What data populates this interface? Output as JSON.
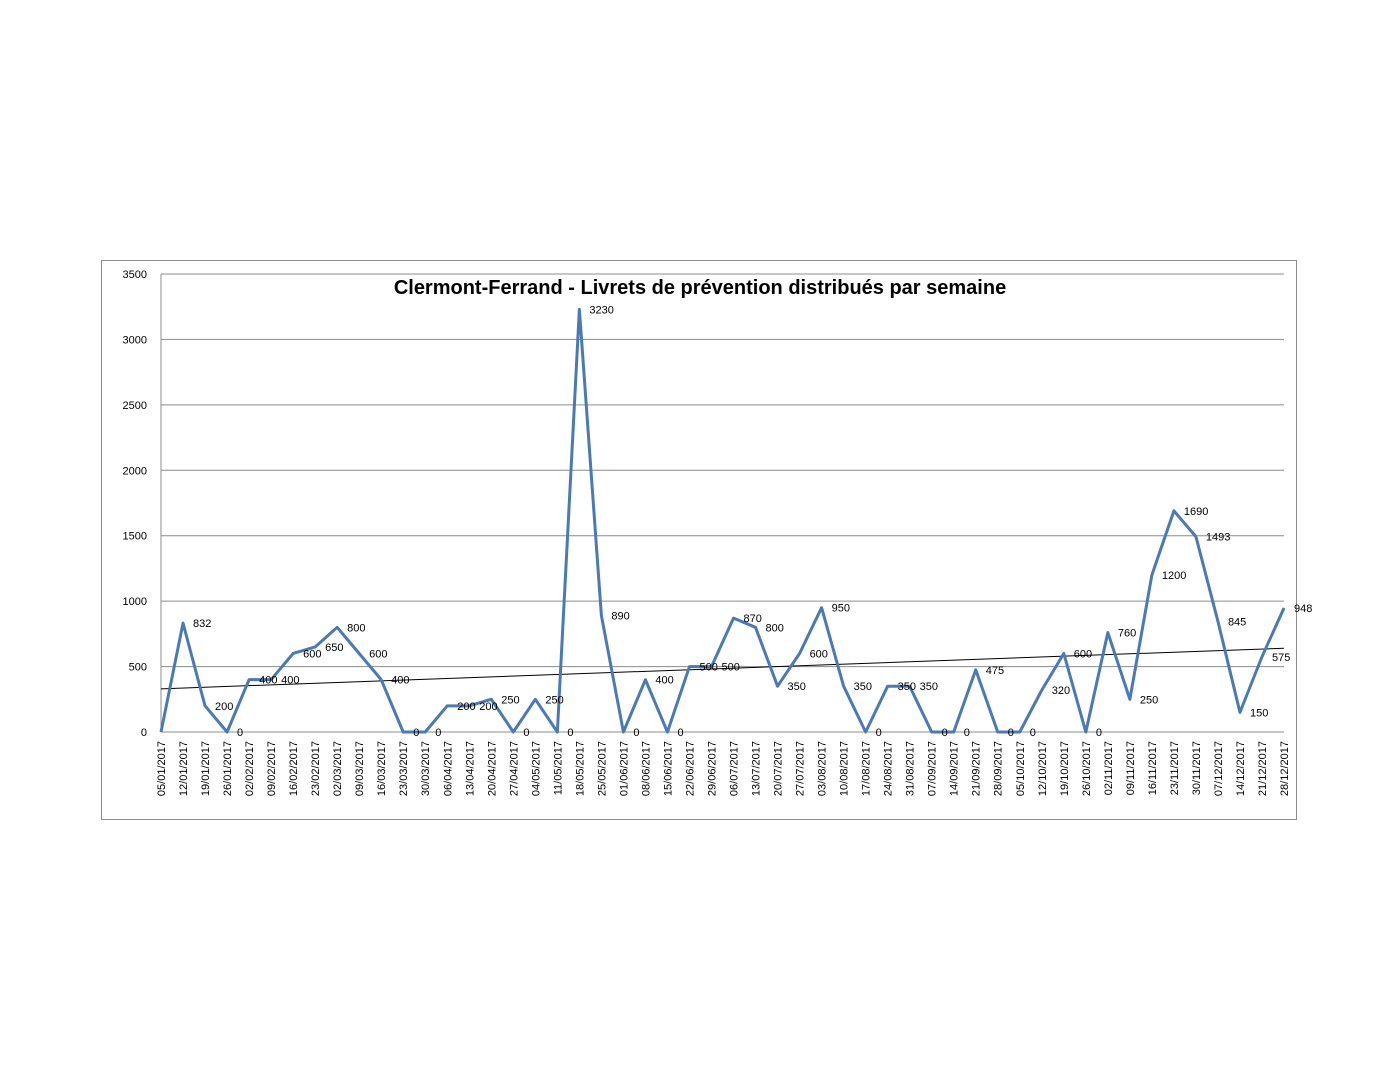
{
  "chart_data": {
    "type": "line",
    "title": "Clermont-Ferrand - Livrets de prévention distribués par semaine",
    "xlabel": "",
    "ylabel": "",
    "ylim": [
      0,
      3500
    ],
    "yticks": [
      "0",
      "500",
      "1000",
      "1500",
      "2000",
      "2500",
      "3000",
      "3500"
    ],
    "grid": true,
    "legend": "none",
    "categories": [
      "05/01/2017",
      "12/01/2017",
      "19/01/2017",
      "26/01/2017",
      "02/02/2017",
      "09/02/2017",
      "16/02/2017",
      "23/02/2017",
      "02/03/2017",
      "09/03/2017",
      "16/03/2017",
      "23/03/2017",
      "30/03/2017",
      "06/04/2017",
      "13/04/2017",
      "20/04/2017",
      "27/04/2017",
      "04/05/2017",
      "11/05/2017",
      "18/05/2017",
      "25/05/2017",
      "01/06/2017",
      "08/06/2017",
      "15/06/2017",
      "22/06/2017",
      "29/06/2017",
      "06/07/2017",
      "13/07/2017",
      "20/07/2017",
      "27/07/2017",
      "03/08/2017",
      "10/08/2017",
      "17/08/2017",
      "24/08/2017",
      "31/08/2017",
      "07/09/2017",
      "14/09/2017",
      "21/09/2017",
      "28/09/2017",
      "05/10/2017",
      "12/10/2017",
      "19/10/2017",
      "26/10/2017",
      "02/11/2017",
      "09/11/2017",
      "16/11/2017",
      "23/11/2017",
      "30/11/2017",
      "07/12/2017",
      "14/12/2017",
      "21/12/2017",
      "28/12/2017"
    ],
    "values": [
      0,
      832,
      200,
      0,
      400,
      400,
      600,
      650,
      800,
      600,
      400,
      0,
      0,
      200,
      200,
      250,
      0,
      250,
      0,
      3230,
      890,
      0,
      400,
      0,
      500,
      500,
      870,
      800,
      350,
      600,
      950,
      350,
      0,
      350,
      350,
      0,
      0,
      475,
      0,
      0,
      320,
      600,
      0,
      760,
      250,
      1200,
      1690,
      1493,
      845,
      150,
      575,
      948
    ],
    "data_labels": [
      "",
      "832",
      "200",
      "0",
      "400",
      "400",
      "600",
      "650",
      "800",
      "600",
      "400",
      "0",
      "0",
      "200",
      "200",
      "250",
      "0",
      "250",
      "0",
      "3230",
      "890",
      "0",
      "400",
      "0",
      "500",
      "500",
      "870",
      "800",
      "350",
      "600",
      "950",
      "350",
      "0",
      "350",
      "350",
      "0",
      "0",
      "475",
      "0",
      "0",
      "320",
      "600",
      "0",
      "760",
      "250",
      "1200",
      "1690",
      "1493",
      "845",
      "150",
      "575",
      "948"
    ],
    "trendline": {
      "type": "linear",
      "start": 330,
      "end": 640
    },
    "colors": {
      "series": "#4a7ab5",
      "trendline": "#000000",
      "grid": "#8c8c8c",
      "frame": "#8c8c8c"
    }
  }
}
